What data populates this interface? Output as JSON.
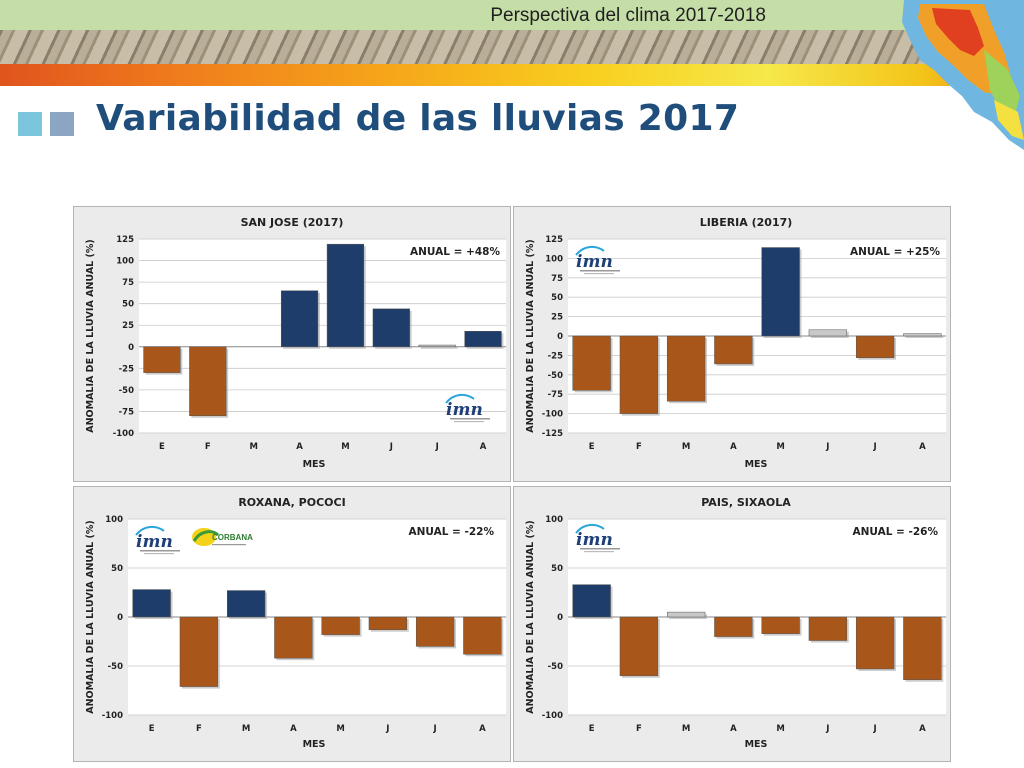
{
  "header": {
    "title": "Perspectiva del clima 2017-2018"
  },
  "slide": {
    "title": "Variabilidad de las lluvias 2017"
  },
  "colors": {
    "positive": "#1f3d6b",
    "negative": "#a9561b",
    "neutral": "#c8c8c8",
    "title": "#1f4e7d"
  },
  "logos": {
    "imn": "imn",
    "corbana": "CORBANA"
  },
  "chart_data": [
    {
      "type": "bar",
      "title": "SAN JOSE (2017)",
      "annotation": "ANUAL = +48%",
      "xlabel": "MES",
      "ylabel": "ANOMALIA DE LA LLUVIA ANUAL (%)",
      "categories": [
        "E",
        "F",
        "M",
        "A",
        "M",
        "J",
        "J",
        "A"
      ],
      "values": [
        -30,
        -80,
        0,
        65,
        119,
        44,
        2,
        18
      ],
      "ylim": [
        -100,
        125
      ],
      "yticks": [
        125,
        100,
        75,
        50,
        25,
        0,
        -25,
        -50,
        -75,
        -100
      ],
      "logos": [
        "imn"
      ],
      "grid": true
    },
    {
      "type": "bar",
      "title": "LIBERIA (2017)",
      "annotation": "ANUAL = +25%",
      "xlabel": "MES",
      "ylabel": "ANOMALIA DE LA LLUVIA ANUAL (%)",
      "categories": [
        "E",
        "F",
        "M",
        "A",
        "M",
        "J",
        "J",
        "A"
      ],
      "values": [
        -70,
        -100,
        -84,
        -36,
        114,
        8,
        -28,
        3
      ],
      "ylim": [
        -125,
        125
      ],
      "yticks": [
        125,
        100,
        75,
        50,
        25,
        0,
        -25,
        -50,
        -75,
        -100,
        -125
      ],
      "logos": [
        "imn"
      ],
      "grid": true
    },
    {
      "type": "bar",
      "title": "ROXANA, POCOCI",
      "annotation": "ANUAL = -22%",
      "xlabel": "MES",
      "ylabel": "ANOMALIA DE LA LLUVIA ANUAL (%)",
      "categories": [
        "E",
        "F",
        "M",
        "A",
        "M",
        "J",
        "J",
        "A"
      ],
      "values": [
        28,
        -71,
        27,
        -42,
        -18,
        -13,
        -30,
        -38
      ],
      "ylim": [
        -100,
        100
      ],
      "yticks": [
        100,
        50,
        0,
        -50,
        -100
      ],
      "logos": [
        "imn",
        "corbana"
      ],
      "grid": true
    },
    {
      "type": "bar",
      "title": "PAIS, SIXAOLA",
      "annotation": "ANUAL = -26%",
      "xlabel": "MES",
      "ylabel": "ANOMALIA DE LA LLUVIA ANUAL (%)",
      "categories": [
        "E",
        "F",
        "M",
        "A",
        "M",
        "J",
        "J",
        "A"
      ],
      "values": [
        33,
        -60,
        5,
        -20,
        -17,
        -24,
        -53,
        -64
      ],
      "ylim": [
        -100,
        100
      ],
      "yticks": [
        100,
        50,
        0,
        -50,
        -100
      ],
      "logos": [
        "imn"
      ],
      "grid": true
    }
  ]
}
